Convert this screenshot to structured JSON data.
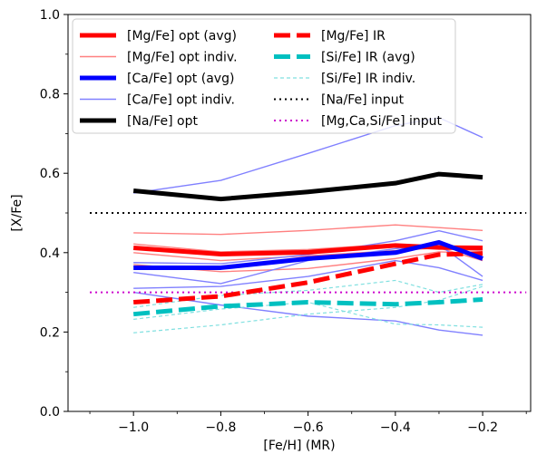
{
  "chart_data": {
    "type": "line",
    "title": "",
    "xlabel": "[Fe/H] (MR)",
    "ylabel": "[X/Fe]",
    "xlim": [
      -1.15,
      -0.09
    ],
    "ylim": [
      0.0,
      1.0
    ],
    "xticks": [
      -1.0,
      -0.8,
      -0.6,
      -0.4,
      -0.2
    ],
    "xtick_labels": [
      "−1.0",
      "−0.8",
      "−0.6",
      "−0.4",
      "−0.2"
    ],
    "yticks": [
      0.0,
      0.2,
      0.4,
      0.6,
      0.8,
      1.0
    ],
    "ytick_labels": [
      "0.0",
      "0.2",
      "0.4",
      "0.6",
      "0.8",
      "1.0"
    ],
    "grid": false,
    "legend_position": "top-left",
    "series": [
      {
        "name": "[Mg/Fe] opt indiv.",
        "legend": true,
        "color": "#ff8080",
        "width": 1.4,
        "dash": "",
        "x": [
          -1.0,
          -0.8,
          -0.6,
          -0.4,
          -0.3,
          -0.2
        ],
        "y": [
          0.45,
          0.446,
          0.456,
          0.47,
          0.463,
          0.456
        ]
      },
      {
        "name": "",
        "legend": false,
        "color": "#ff8080",
        "width": 1.4,
        "dash": "",
        "x": [
          -1.0,
          -0.8,
          -0.6,
          -0.4,
          -0.3,
          -0.2
        ],
        "y": [
          0.422,
          0.402,
          0.408,
          0.422,
          0.41,
          0.405
        ]
      },
      {
        "name": "",
        "legend": false,
        "color": "#ff8080",
        "width": 1.4,
        "dash": "",
        "x": [
          -1.0,
          -0.8,
          -0.6,
          -0.4,
          -0.3,
          -0.2
        ],
        "y": [
          0.4,
          0.38,
          0.392,
          0.405,
          0.412,
          0.38
        ]
      },
      {
        "name": "",
        "legend": false,
        "color": "#ff8080",
        "width": 1.4,
        "dash": "",
        "x": [
          -1.0,
          -0.8,
          -0.6,
          -0.4,
          -0.3,
          -0.2
        ],
        "y": [
          0.37,
          0.352,
          0.36,
          0.385,
          0.402,
          0.398
        ]
      },
      {
        "name": "[Ca/Fe] opt indiv.",
        "legend": true,
        "color": "#8080ff",
        "width": 1.4,
        "dash": "",
        "x": [
          -1.0,
          -0.8,
          -0.6,
          -0.4,
          -0.3,
          -0.2
        ],
        "y": [
          0.55,
          0.582,
          0.65,
          0.72,
          0.74,
          0.69
        ]
      },
      {
        "name": "",
        "legend": false,
        "color": "#8080ff",
        "width": 1.4,
        "dash": "",
        "x": [
          -1.0,
          -0.8,
          -0.6,
          -0.4,
          -0.3,
          -0.2
        ],
        "y": [
          0.375,
          0.372,
          0.395,
          0.43,
          0.455,
          0.43
        ]
      },
      {
        "name": "",
        "legend": false,
        "color": "#8080ff",
        "width": 1.4,
        "dash": "",
        "x": [
          -1.0,
          -0.8,
          -0.6,
          -0.4,
          -0.3,
          -0.2
        ],
        "y": [
          0.35,
          0.322,
          0.38,
          0.41,
          0.42,
          0.34
        ]
      },
      {
        "name": "",
        "legend": false,
        "color": "#8080ff",
        "width": 1.4,
        "dash": "",
        "x": [
          -1.0,
          -0.8,
          -0.6,
          -0.4,
          -0.3,
          -0.2
        ],
        "y": [
          0.31,
          0.315,
          0.34,
          0.38,
          0.362,
          0.33
        ]
      },
      {
        "name": "",
        "legend": false,
        "color": "#8080ff",
        "width": 1.4,
        "dash": "",
        "x": [
          -1.0,
          -0.8,
          -0.6,
          -0.4,
          -0.3,
          -0.2
        ],
        "y": [
          0.3,
          0.268,
          0.24,
          0.228,
          0.205,
          0.192
        ]
      },
      {
        "name": "[Si/Fe] IR indiv.",
        "legend": true,
        "color": "#80e0e0",
        "width": 1.2,
        "dash": "4,3",
        "x": [
          -1.0,
          -0.8,
          -0.6,
          -0.4,
          -0.3,
          -0.2
        ],
        "y": [
          0.198,
          0.218,
          0.245,
          0.262,
          0.28,
          0.315
        ]
      },
      {
        "name": "",
        "legend": false,
        "color": "#80e0e0",
        "width": 1.2,
        "dash": "4,3",
        "x": [
          -1.0,
          -0.8,
          -0.6,
          -0.4,
          -0.3,
          -0.2
        ],
        "y": [
          0.232,
          0.258,
          0.275,
          0.22,
          0.218,
          0.212
        ]
      },
      {
        "name": "",
        "legend": false,
        "color": "#80e0e0",
        "width": 1.2,
        "dash": "4,3",
        "x": [
          -1.0,
          -0.8,
          -0.6,
          -0.4,
          -0.3,
          -0.2
        ],
        "y": [
          0.262,
          0.292,
          0.305,
          0.33,
          0.3,
          0.32
        ]
      },
      {
        "name": "[Na/Fe] input",
        "legend": true,
        "color": "#000000",
        "width": 2.0,
        "dash": "2,4",
        "x": [
          -1.1,
          -0.1
        ],
        "y": [
          0.5,
          0.5
        ]
      },
      {
        "name": "[Mg,Ca,Si/Fe] input",
        "legend": true,
        "color": "#cc00cc",
        "width": 2.0,
        "dash": "2,4",
        "x": [
          -1.1,
          -0.1
        ],
        "y": [
          0.3,
          0.3
        ]
      },
      {
        "name": "[Si/Fe] IR (avg)",
        "legend": true,
        "color": "#00c0c0",
        "width": 5.0,
        "dash": "18,7",
        "x": [
          -1.0,
          -0.8,
          -0.6,
          -0.4,
          -0.3,
          -0.2
        ],
        "y": [
          0.245,
          0.265,
          0.275,
          0.27,
          0.275,
          0.282
        ]
      },
      {
        "name": "[Mg/Fe] IR",
        "legend": true,
        "color": "#ff0000",
        "width": 5.0,
        "dash": "18,7",
        "x": [
          -1.0,
          -0.8,
          -0.6,
          -0.4,
          -0.3,
          -0.2
        ],
        "y": [
          0.275,
          0.29,
          0.325,
          0.372,
          0.395,
          0.398
        ]
      },
      {
        "name": "[Mg/Fe] opt (avg)",
        "legend": true,
        "color": "#ff0000",
        "width": 5.0,
        "dash": "",
        "x": [
          -1.0,
          -0.8,
          -0.6,
          -0.4,
          -0.3,
          -0.2
        ],
        "y": [
          0.412,
          0.396,
          0.401,
          0.418,
          0.413,
          0.412
        ]
      },
      {
        "name": "[Ca/Fe] opt (avg)",
        "legend": true,
        "color": "#0000ff",
        "width": 5.0,
        "dash": "",
        "x": [
          -1.0,
          -0.8,
          -0.6,
          -0.4,
          -0.3,
          -0.2
        ],
        "y": [
          0.362,
          0.362,
          0.385,
          0.4,
          0.426,
          0.385
        ]
      },
      {
        "name": "[Na/Fe] opt",
        "legend": true,
        "color": "#000000",
        "width": 5.0,
        "dash": "",
        "x": [
          -1.0,
          -0.8,
          -0.6,
          -0.4,
          -0.3,
          -0.2
        ],
        "y": [
          0.556,
          0.535,
          0.553,
          0.575,
          0.598,
          0.59
        ]
      }
    ],
    "legend_columns": [
      [
        "[Mg/Fe] opt (avg)",
        "[Mg/Fe] opt indiv.",
        "[Ca/Fe] opt (avg)",
        "[Ca/Fe] opt indiv.",
        "[Na/Fe] opt"
      ],
      [
        "[Mg/Fe] IR",
        "[Si/Fe] IR (avg)",
        "[Si/Fe] IR indiv.",
        "[Na/Fe] input",
        "[Mg,Ca,Si/Fe] input"
      ]
    ]
  }
}
